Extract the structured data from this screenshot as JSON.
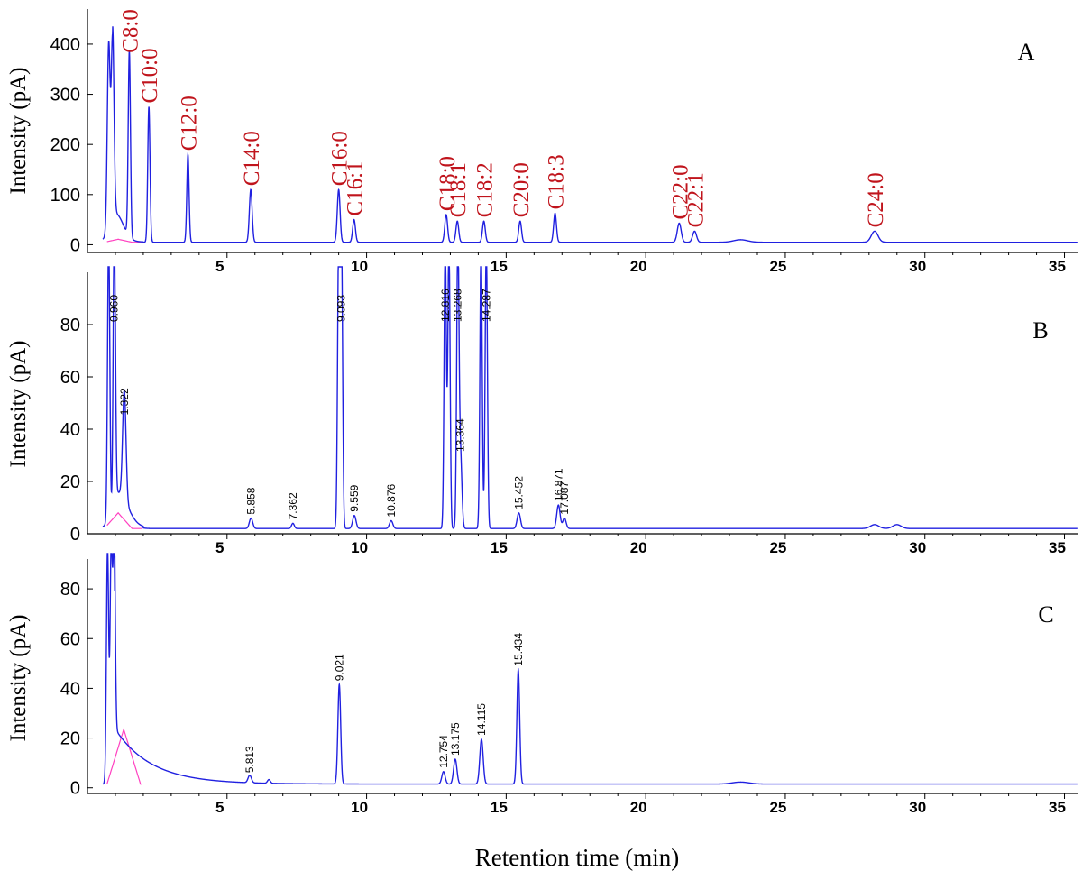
{
  "xlabel": "Retention time (min)",
  "colors": {
    "trace": "#2020e0",
    "baseline": "#ff40c0",
    "peak_name": "#c0141c",
    "axis": "#000000"
  },
  "chart_data": [
    {
      "type": "line",
      "panel_label": "A",
      "ylabel": "Intensity (pA)",
      "xlim": [
        0,
        35.5
      ],
      "ylim": [
        -10,
        470
      ],
      "y_ticks": [
        "0",
        "100",
        "200",
        "300",
        "400"
      ],
      "y_tick_values": [
        0,
        100,
        200,
        300,
        400
      ],
      "x_ticks": [
        "5",
        "10",
        "15",
        "20",
        "25",
        "30",
        "35"
      ],
      "x_tick_values": [
        5,
        10,
        15,
        20,
        25,
        30,
        35
      ],
      "baseline": 5,
      "peaks": [
        {
          "x": 0.76,
          "height": 370,
          "width": 0.05
        },
        {
          "x": 0.9,
          "height": 370,
          "width": 0.05
        },
        {
          "x": 1.05,
          "height": 45,
          "width": 0.25
        },
        {
          "x": 1.5,
          "height": 370,
          "width": 0.04,
          "label": "C8:0"
        },
        {
          "x": 2.2,
          "height": 270,
          "width": 0.04,
          "label": "C10:0"
        },
        {
          "x": 3.6,
          "height": 175,
          "width": 0.04,
          "label": "C12:0"
        },
        {
          "x": 5.85,
          "height": 105,
          "width": 0.05,
          "label": "C14:0"
        },
        {
          "x": 9.0,
          "height": 105,
          "width": 0.05,
          "label": "C16:0"
        },
        {
          "x": 9.55,
          "height": 45,
          "width": 0.05,
          "label": "C16:1"
        },
        {
          "x": 12.85,
          "height": 55,
          "width": 0.05,
          "label": "C18:0"
        },
        {
          "x": 13.25,
          "height": 42,
          "width": 0.05,
          "label": "C18:1"
        },
        {
          "x": 14.2,
          "height": 42,
          "width": 0.05,
          "label": "C18:2"
        },
        {
          "x": 15.5,
          "height": 42,
          "width": 0.05,
          "label": "C20:0"
        },
        {
          "x": 16.75,
          "height": 58,
          "width": 0.05,
          "label": "C18:3"
        },
        {
          "x": 21.2,
          "height": 38,
          "width": 0.07,
          "label": "C22:0"
        },
        {
          "x": 21.75,
          "height": 22,
          "width": 0.07,
          "label": "C22:1"
        },
        {
          "x": 23.4,
          "height": 5,
          "width": 0.25
        },
        {
          "x": 28.2,
          "height": 22,
          "width": 0.12,
          "label": "C24:0"
        }
      ]
    },
    {
      "type": "line",
      "panel_label": "B",
      "ylabel": "Intensity (pA)",
      "xlim": [
        0,
        35.5
      ],
      "ylim": [
        0,
        100
      ],
      "y_ticks": [
        "0",
        "20",
        "40",
        "60",
        "80"
      ],
      "y_tick_values": [
        0,
        20,
        40,
        60,
        80
      ],
      "x_ticks": [
        "5",
        "10",
        "15",
        "20",
        "25",
        "30",
        "35"
      ],
      "x_tick_values": [
        5,
        10,
        15,
        20,
        25,
        30,
        35
      ],
      "baseline": 2,
      "peaks": [
        {
          "x": 0.76,
          "height": 110,
          "width": 0.04
        },
        {
          "x": 0.96,
          "height": 110,
          "width": 0.04,
          "rt": "0.960"
        },
        {
          "x": 1.2,
          "height": 8,
          "width": 0.3
        },
        {
          "x": 1.32,
          "height": 42,
          "width": 0.06,
          "rt": "1.322"
        },
        {
          "x": 5.86,
          "height": 4,
          "width": 0.06,
          "rt": "5.858"
        },
        {
          "x": 7.36,
          "height": 2,
          "width": 0.05,
          "rt": "7.362"
        },
        {
          "x": 9.0,
          "height": 110,
          "width": 0.04
        },
        {
          "x": 9.1,
          "height": 110,
          "width": 0.04,
          "rt": "9.093"
        },
        {
          "x": 9.56,
          "height": 5,
          "width": 0.06,
          "rt": "9.559"
        },
        {
          "x": 10.88,
          "height": 3,
          "width": 0.06,
          "rt": "10.876"
        },
        {
          "x": 12.816,
          "height": 110,
          "width": 0.04,
          "rt": "12.816"
        },
        {
          "x": 12.95,
          "height": 110,
          "width": 0.04
        },
        {
          "x": 13.268,
          "height": 110,
          "width": 0.04,
          "rt": "13.268"
        },
        {
          "x": 13.364,
          "height": 28,
          "width": 0.05,
          "rt": "13.364"
        },
        {
          "x": 14.1,
          "height": 110,
          "width": 0.04
        },
        {
          "x": 14.287,
          "height": 110,
          "width": 0.04,
          "rt": "14.287"
        },
        {
          "x": 15.452,
          "height": 6,
          "width": 0.06,
          "rt": "15.452"
        },
        {
          "x": 16.871,
          "height": 9,
          "width": 0.06,
          "rt": "16.871"
        },
        {
          "x": 17.087,
          "height": 4,
          "width": 0.06,
          "rt": "17.087"
        },
        {
          "x": 28.2,
          "height": 1.5,
          "width": 0.15
        },
        {
          "x": 29.0,
          "height": 1.5,
          "width": 0.15
        }
      ]
    },
    {
      "type": "line",
      "panel_label": "C",
      "ylabel": "Intensity (pA)",
      "xlim": [
        0,
        35.5
      ],
      "ylim": [
        -3,
        92
      ],
      "y_ticks": [
        "0",
        "20",
        "40",
        "60",
        "80"
      ],
      "y_tick_values": [
        0,
        20,
        40,
        60,
        80
      ],
      "x_ticks": [
        "5",
        "10",
        "15",
        "20",
        "25",
        "30",
        "35"
      ],
      "x_tick_values": [
        5,
        10,
        15,
        20,
        25,
        30,
        35
      ],
      "baseline": 1.5,
      "peaks": [
        {
          "x": 0.72,
          "height": 95,
          "width": 0.04
        },
        {
          "x": 0.85,
          "height": 95,
          "width": 0.04
        },
        {
          "x": 0.95,
          "height": 95,
          "width": 0.04
        },
        {
          "x": 5.813,
          "height": 3,
          "width": 0.06,
          "rt": "5.813"
        },
        {
          "x": 6.5,
          "height": 1.5,
          "width": 0.05
        },
        {
          "x": 9.021,
          "height": 40,
          "width": 0.05,
          "rt": "9.021"
        },
        {
          "x": 12.754,
          "height": 5,
          "width": 0.06,
          "rt": "12.754"
        },
        {
          "x": 13.175,
          "height": 10,
          "width": 0.06,
          "rt": "13.175"
        },
        {
          "x": 14.115,
          "height": 18,
          "width": 0.06,
          "rt": "14.115"
        },
        {
          "x": 15.434,
          "height": 46,
          "width": 0.05,
          "rt": "15.434"
        },
        {
          "x": 23.4,
          "height": 0.8,
          "width": 0.3
        }
      ]
    }
  ]
}
